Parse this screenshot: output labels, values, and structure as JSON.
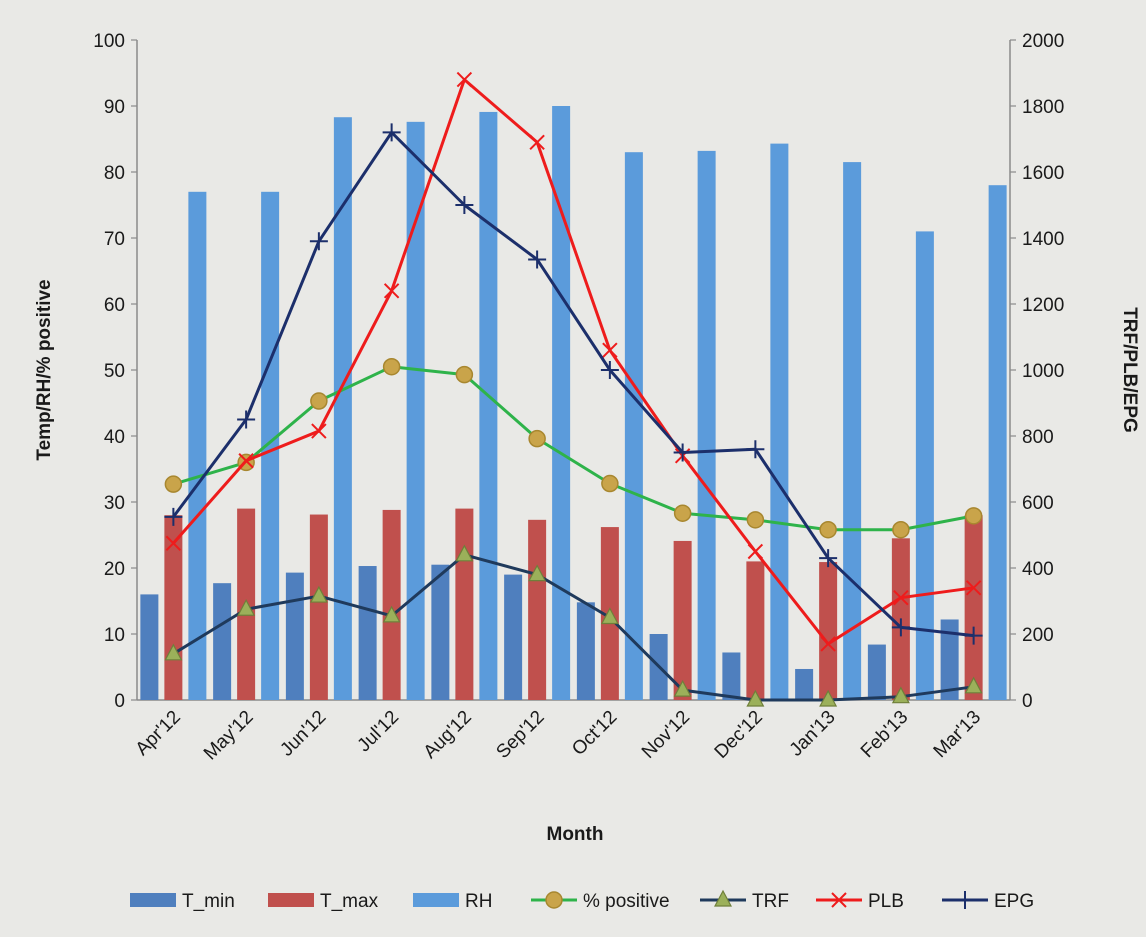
{
  "chart_data": {
    "type": "bar",
    "categories": [
      "Apr'12",
      "May'12",
      "Jun'12",
      "Jul'12",
      "Aug'12",
      "Sep'12",
      "Oct'12",
      "Nov'12",
      "Dec'12",
      "Jan'13",
      "Feb'13",
      "Mar'13"
    ],
    "xlabel": "Month",
    "ylabel": "Temp/RH/% positive",
    "y2label": "TRF/PLB/EPG",
    "ylim": [
      0,
      100
    ],
    "y2lim": [
      0,
      2000
    ],
    "yticks": [
      "0",
      "10",
      "20",
      "30",
      "40",
      "50",
      "60",
      "70",
      "80",
      "90",
      "100"
    ],
    "y2ticks": [
      "0",
      "200",
      "400",
      "600",
      "800",
      "1000",
      "1200",
      "1400",
      "1600",
      "1800",
      "2000"
    ],
    "grid": false,
    "legend_position": "bottom",
    "series": [
      {
        "name": "T_min",
        "type": "bar",
        "axis": "left",
        "color": "#4f7fbe",
        "values": [
          16,
          17.7,
          19.3,
          20.3,
          20.5,
          19,
          14.8,
          10,
          7.2,
          4.7,
          8.4,
          12.2
        ]
      },
      {
        "name": "T_max",
        "type": "bar",
        "axis": "left",
        "color": "#c0504d",
        "values": [
          28,
          29,
          28.1,
          28.8,
          29,
          27.3,
          26.2,
          24.1,
          21,
          20.9,
          24.5,
          28
        ]
      },
      {
        "name": "RH",
        "type": "bar",
        "axis": "left",
        "color": "#5b9bdb",
        "values": [
          77,
          77,
          88.3,
          87.6,
          89.1,
          90,
          83,
          83.2,
          84.3,
          81.5,
          71,
          78
        ]
      },
      {
        "name": "% positive",
        "type": "line",
        "marker": "circle",
        "axis": "left",
        "color": "#2eb34a",
        "values": [
          32.7,
          36,
          45.3,
          50.5,
          49.3,
          39.6,
          32.8,
          28.3,
          27.3,
          25.8,
          25.8,
          27.9
        ]
      },
      {
        "name": "TRF",
        "type": "line",
        "marker": "triangle",
        "axis": "right",
        "color": "#1f3a5c",
        "values": [
          140,
          275,
          315,
          255,
          440,
          380,
          250,
          30,
          0,
          0,
          10,
          40
        ]
      },
      {
        "name": "PLB",
        "type": "line",
        "marker": "x",
        "axis": "right",
        "color": "#ee1c1c",
        "values": [
          475,
          725,
          815,
          1240,
          1880,
          1690,
          1060,
          740,
          450,
          170,
          310,
          340
        ]
      },
      {
        "name": "EPG",
        "type": "line",
        "marker": "plus",
        "axis": "right",
        "color": "#1c2f6b",
        "values": [
          555,
          850,
          1390,
          1720,
          1500,
          1335,
          1000,
          750,
          760,
          430,
          220,
          195
        ]
      }
    ]
  }
}
